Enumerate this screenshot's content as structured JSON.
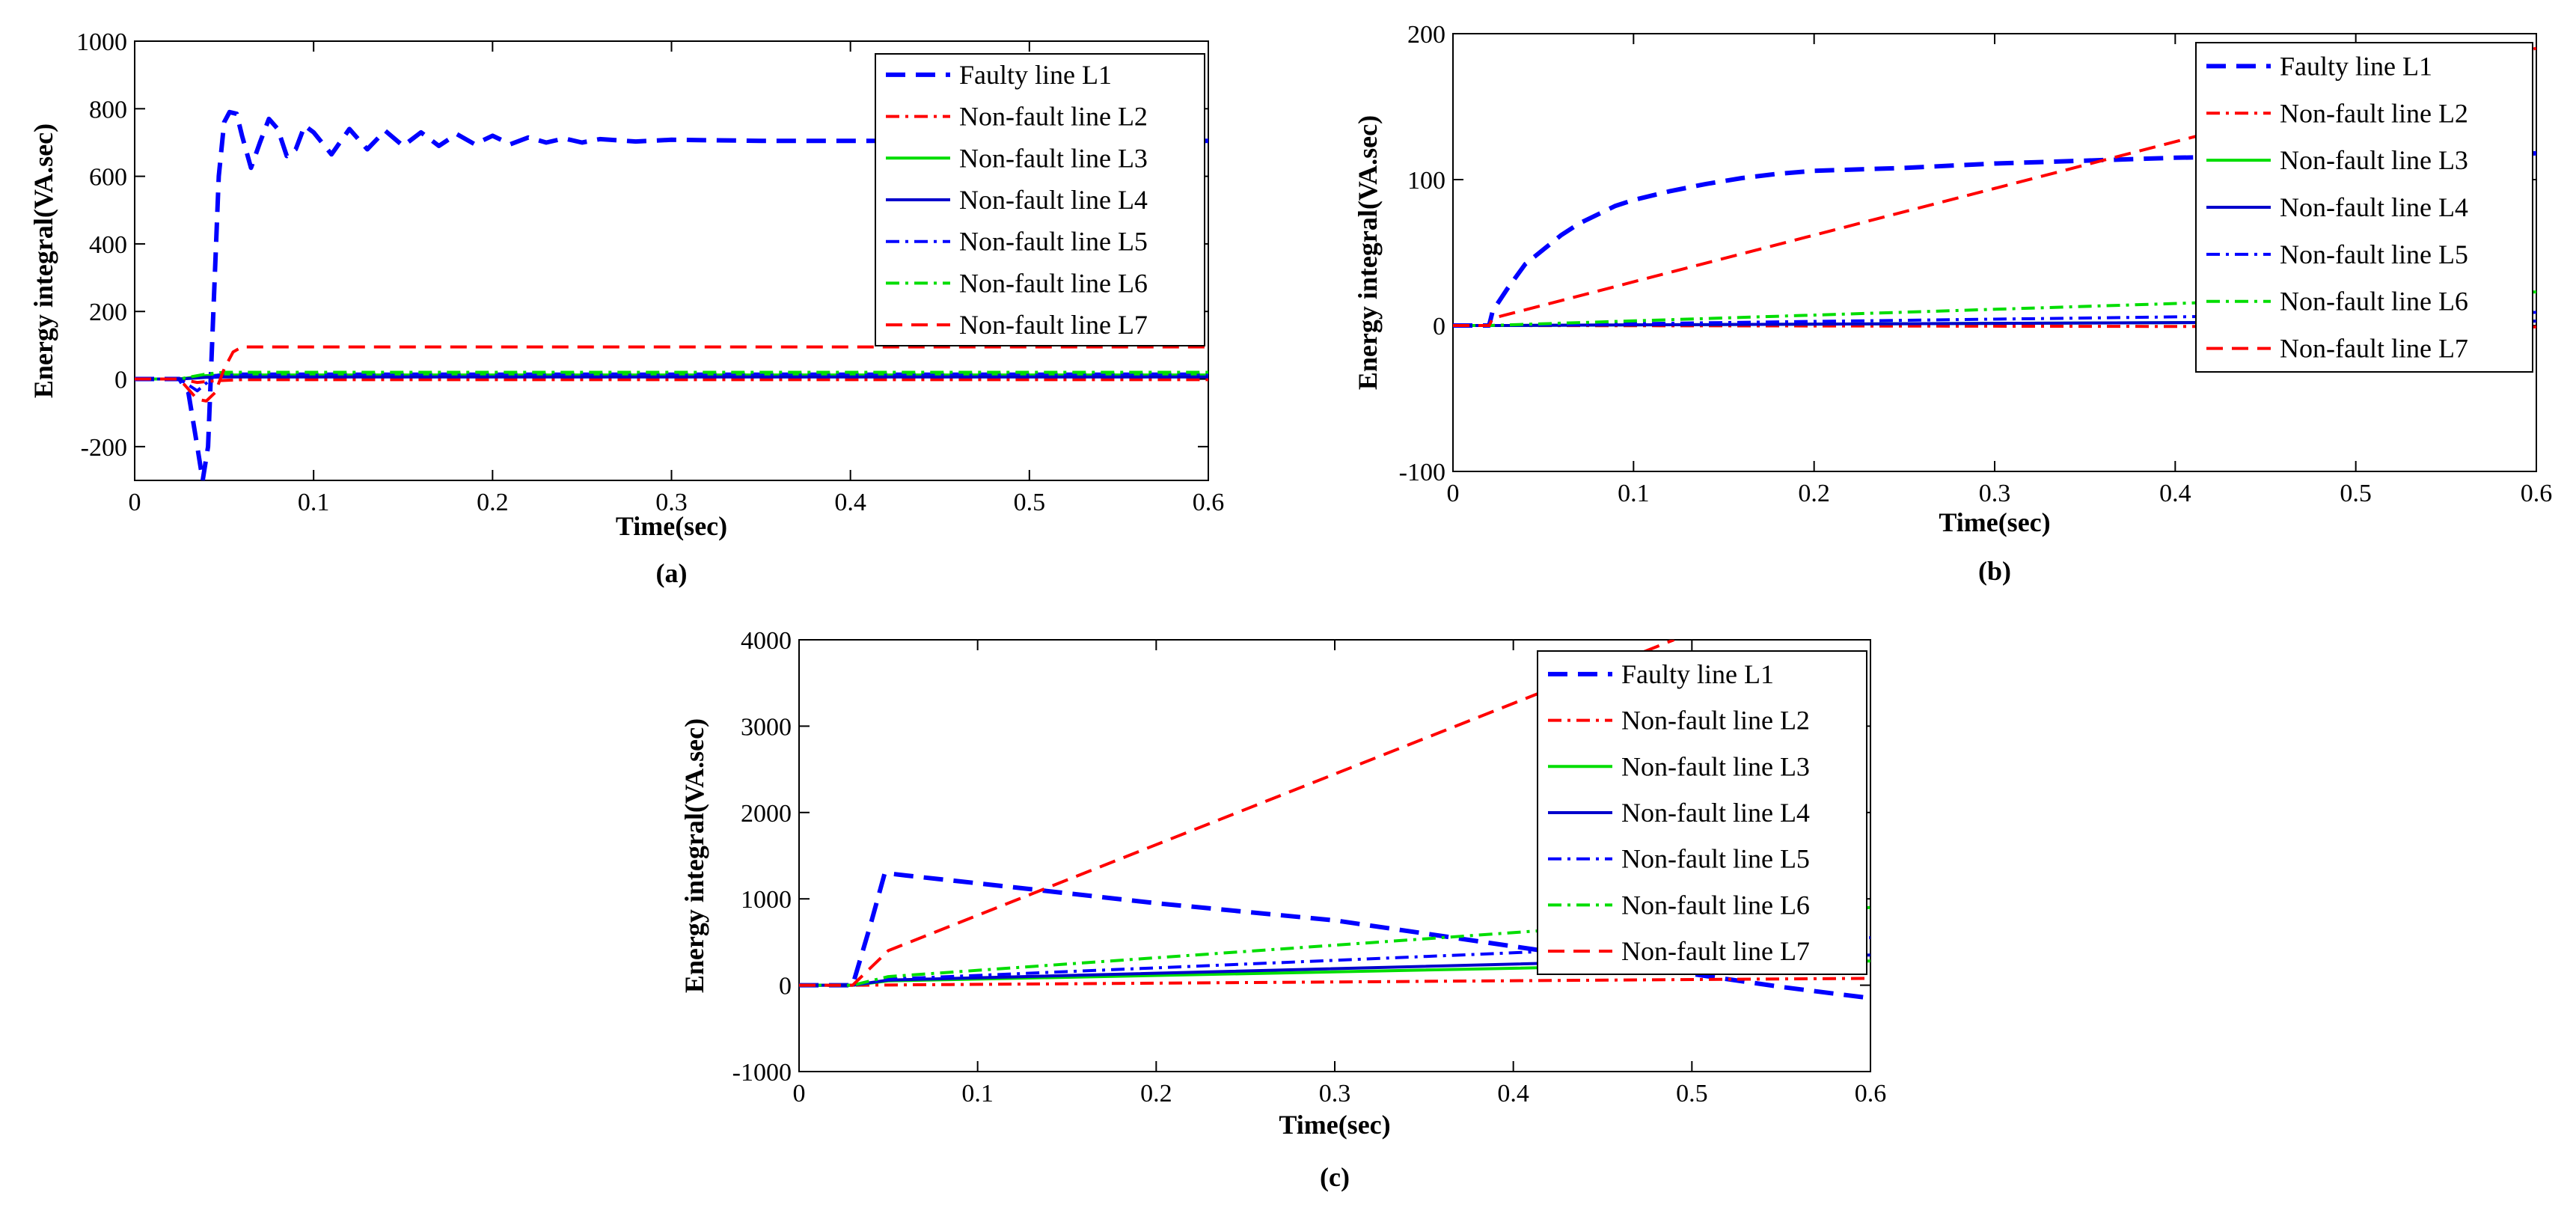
{
  "chart_data": [
    {
      "type": "line",
      "panel": "(a)",
      "xlabel": "Time(sec)",
      "ylabel": "Energy integral(VA.sec)",
      "xlim": [
        0,
        0.6
      ],
      "ylim": [
        -300,
        1000
      ],
      "xticks": [
        0,
        0.1,
        0.2,
        0.3,
        0.4,
        0.5,
        0.6
      ],
      "yticks": [
        -200,
        0,
        200,
        400,
        600,
        800,
        1000
      ],
      "legend_position": "top-right",
      "series": [
        {
          "name": "Faulty line L1",
          "color": "#0000ff",
          "style": "dashed-thick",
          "points": [
            [
              0,
              0
            ],
            [
              0.025,
              0
            ],
            [
              0.03,
              -40
            ],
            [
              0.035,
              -200
            ],
            [
              0.038,
              -300
            ],
            [
              0.041,
              -200
            ],
            [
              0.044,
              200
            ],
            [
              0.047,
              600
            ],
            [
              0.05,
              760
            ],
            [
              0.053,
              790
            ],
            [
              0.057,
              785
            ],
            [
              0.06,
              720
            ],
            [
              0.065,
              625
            ],
            [
              0.07,
              700
            ],
            [
              0.075,
              770
            ],
            [
              0.08,
              740
            ],
            [
              0.085,
              660
            ],
            [
              0.09,
              680
            ],
            [
              0.095,
              750
            ],
            [
              0.1,
              730
            ],
            [
              0.11,
              665
            ],
            [
              0.12,
              740
            ],
            [
              0.13,
              680
            ],
            [
              0.14,
              735
            ],
            [
              0.15,
              690
            ],
            [
              0.16,
              730
            ],
            [
              0.17,
              690
            ],
            [
              0.18,
              725
            ],
            [
              0.19,
              695
            ],
            [
              0.2,
              720
            ],
            [
              0.21,
              695
            ],
            [
              0.22,
              715
            ],
            [
              0.23,
              700
            ],
            [
              0.24,
              712
            ],
            [
              0.25,
              700
            ],
            [
              0.26,
              710
            ],
            [
              0.28,
              703
            ],
            [
              0.3,
              708
            ],
            [
              0.35,
              705
            ],
            [
              0.4,
              705
            ],
            [
              0.5,
              705
            ],
            [
              0.6,
              705
            ]
          ]
        },
        {
          "name": "Non-fault line L2",
          "color": "#ff0000",
          "style": "dashdot",
          "points": [
            [
              0,
              0
            ],
            [
              0.025,
              0
            ],
            [
              0.035,
              -10
            ],
            [
              0.045,
              -5
            ],
            [
              0.06,
              -2
            ],
            [
              0.6,
              -2
            ]
          ]
        },
        {
          "name": "Non-fault line L3",
          "color": "#00dd00",
          "style": "solid",
          "points": [
            [
              0,
              0
            ],
            [
              0.025,
              0
            ],
            [
              0.04,
              10
            ],
            [
              0.05,
              12
            ],
            [
              0.6,
              12
            ]
          ]
        },
        {
          "name": "Non-fault line L4",
          "color": "#0000cc",
          "style": "solid",
          "points": [
            [
              0,
              0
            ],
            [
              0.025,
              0
            ],
            [
              0.04,
              5
            ],
            [
              0.05,
              6
            ],
            [
              0.6,
              6
            ]
          ]
        },
        {
          "name": "Non-fault line L5",
          "color": "#0000ff",
          "style": "dashdot",
          "points": [
            [
              0,
              0
            ],
            [
              0.025,
              0
            ],
            [
              0.035,
              -35
            ],
            [
              0.045,
              10
            ],
            [
              0.05,
              15
            ],
            [
              0.6,
              15
            ]
          ]
        },
        {
          "name": "Non-fault line L6",
          "color": "#00dd00",
          "style": "dashdot",
          "points": [
            [
              0,
              0
            ],
            [
              0.025,
              0
            ],
            [
              0.04,
              15
            ],
            [
              0.05,
              20
            ],
            [
              0.6,
              20
            ]
          ]
        },
        {
          "name": "Non-fault line L7",
          "color": "#ff0000",
          "style": "dashed",
          "points": [
            [
              0,
              0
            ],
            [
              0.025,
              0
            ],
            [
              0.03,
              -30
            ],
            [
              0.035,
              -60
            ],
            [
              0.04,
              -65
            ],
            [
              0.045,
              -40
            ],
            [
              0.05,
              30
            ],
            [
              0.055,
              80
            ],
            [
              0.06,
              95
            ],
            [
              0.6,
              95
            ]
          ]
        }
      ]
    },
    {
      "type": "line",
      "panel": "(b)",
      "xlabel": "Time(sec)",
      "ylabel": "Energy integral(VA.sec)",
      "xlim": [
        0,
        0.6
      ],
      "ylim": [
        -100,
        200
      ],
      "xticks": [
        0,
        0.1,
        0.2,
        0.3,
        0.4,
        0.5,
        0.6
      ],
      "yticks": [
        -100,
        0,
        100,
        200
      ],
      "legend_position": "top-right",
      "series": [
        {
          "name": "Faulty line L1",
          "color": "#0000ff",
          "style": "dashed-thick",
          "points": [
            [
              0,
              0
            ],
            [
              0.02,
              0
            ],
            [
              0.022,
              10
            ],
            [
              0.03,
              25
            ],
            [
              0.04,
              42
            ],
            [
              0.05,
              52
            ],
            [
              0.06,
              62
            ],
            [
              0.07,
              70
            ],
            [
              0.08,
              76
            ],
            [
              0.09,
              82
            ],
            [
              0.1,
              86
            ],
            [
              0.12,
              92
            ],
            [
              0.14,
              97
            ],
            [
              0.16,
              101
            ],
            [
              0.18,
              104
            ],
            [
              0.2,
              106
            ],
            [
              0.25,
              108
            ],
            [
              0.3,
              111
            ],
            [
              0.35,
              113
            ],
            [
              0.4,
              115
            ],
            [
              0.5,
              117
            ],
            [
              0.6,
              118
            ]
          ]
        },
        {
          "name": "Non-fault line L2",
          "color": "#ff0000",
          "style": "dashdot",
          "points": [
            [
              0,
              0
            ],
            [
              0.02,
              0
            ],
            [
              0.6,
              -1
            ]
          ]
        },
        {
          "name": "Non-fault line L3",
          "color": "#00dd00",
          "style": "solid",
          "points": [
            [
              0,
              0
            ],
            [
              0.02,
              0
            ],
            [
              0.6,
              3
            ]
          ]
        },
        {
          "name": "Non-fault line L4",
          "color": "#0000cc",
          "style": "solid",
          "points": [
            [
              0,
              0
            ],
            [
              0.02,
              0
            ],
            [
              0.6,
              3
            ]
          ]
        },
        {
          "name": "Non-fault line L5",
          "color": "#0000ff",
          "style": "dashdot",
          "points": [
            [
              0,
              0
            ],
            [
              0.02,
              0
            ],
            [
              0.6,
              9
            ]
          ]
        },
        {
          "name": "Non-fault line L6",
          "color": "#00dd00",
          "style": "dashdot",
          "points": [
            [
              0,
              0
            ],
            [
              0.02,
              0
            ],
            [
              0.6,
              23
            ]
          ]
        },
        {
          "name": "Non-fault line L7",
          "color": "#ff0000",
          "style": "dashed",
          "points": [
            [
              0,
              0
            ],
            [
              0.02,
              0
            ],
            [
              0.022,
              5
            ],
            [
              0.6,
              190
            ]
          ]
        }
      ]
    },
    {
      "type": "line",
      "panel": "(c)",
      "xlabel": "Time(sec)",
      "ylabel": "Energy integral(VA.sec)",
      "xlim": [
        0,
        0.6
      ],
      "ylim": [
        -1000,
        4000
      ],
      "xticks": [
        0,
        0.1,
        0.2,
        0.3,
        0.4,
        0.5,
        0.6
      ],
      "yticks": [
        -1000,
        0,
        1000,
        2000,
        3000,
        4000
      ],
      "legend_position": "top-right",
      "series": [
        {
          "name": "Faulty line L1",
          "color": "#0000ff",
          "style": "dashed-thick",
          "points": [
            [
              0,
              0
            ],
            [
              0.03,
              0
            ],
            [
              0.04,
              700
            ],
            [
              0.048,
              1300
            ],
            [
              0.06,
              1270
            ],
            [
              0.1,
              1180
            ],
            [
              0.2,
              950
            ],
            [
              0.3,
              750
            ],
            [
              0.4,
              450
            ],
            [
              0.45,
              300
            ],
            [
              0.5,
              130
            ],
            [
              0.55,
              -20
            ],
            [
              0.6,
              -150
            ]
          ]
        },
        {
          "name": "Non-fault line L2",
          "color": "#ff0000",
          "style": "dashdot",
          "points": [
            [
              0,
              0
            ],
            [
              0.03,
              0
            ],
            [
              0.6,
              80
            ]
          ]
        },
        {
          "name": "Non-fault line L3",
          "color": "#00dd00",
          "style": "solid",
          "points": [
            [
              0,
              0
            ],
            [
              0.03,
              0
            ],
            [
              0.05,
              50
            ],
            [
              0.6,
              280
            ]
          ]
        },
        {
          "name": "Non-fault line L4",
          "color": "#0000cc",
          "style": "solid",
          "points": [
            [
              0,
              0
            ],
            [
              0.03,
              0
            ],
            [
              0.05,
              60
            ],
            [
              0.6,
              350
            ]
          ]
        },
        {
          "name": "Non-fault line L5",
          "color": "#0000ff",
          "style": "dashdot",
          "points": [
            [
              0,
              0
            ],
            [
              0.03,
              0
            ],
            [
              0.05,
              70
            ],
            [
              0.6,
              550
            ]
          ]
        },
        {
          "name": "Non-fault line L6",
          "color": "#00dd00",
          "style": "dashdot",
          "points": [
            [
              0,
              0
            ],
            [
              0.03,
              0
            ],
            [
              0.05,
              100
            ],
            [
              0.6,
              900
            ]
          ]
        },
        {
          "name": "Non-fault line L7",
          "color": "#ff0000",
          "style": "dashed",
          "points": [
            [
              0,
              0
            ],
            [
              0.03,
              0
            ],
            [
              0.05,
              400
            ],
            [
              0.49,
              4000
            ]
          ]
        }
      ]
    }
  ]
}
